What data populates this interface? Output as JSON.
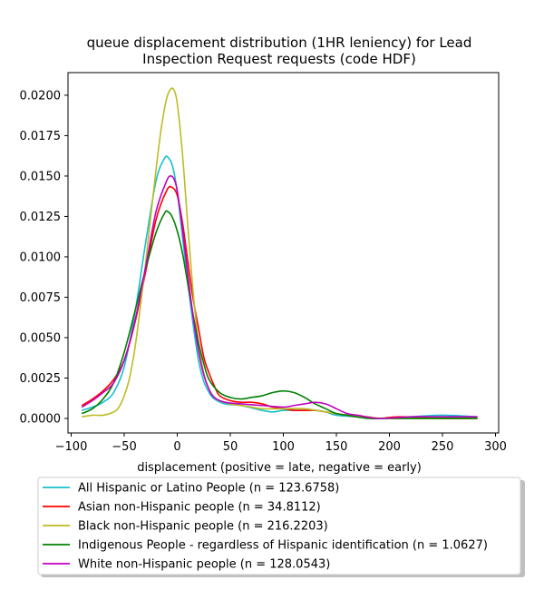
{
  "chart_data": {
    "type": "line",
    "title_lines": [
      "queue displacement distribution (1HR leniency) for Lead",
      "Inspection Request  requests (code HDF)"
    ],
    "xlabel": "displacement (positive = late, negative = early)",
    "ylabel": "",
    "xlim": [
      -103,
      303
    ],
    "ylim": [
      -0.0009,
      0.0214
    ],
    "xticks": [
      -100,
      -50,
      0,
      50,
      100,
      150,
      200,
      250,
      300
    ],
    "xtick_labels": [
      "−100",
      "−50",
      "0",
      "50",
      "100",
      "150",
      "200",
      "250",
      "300"
    ],
    "yticks": [
      0,
      0.0025,
      0.005,
      0.0075,
      0.01,
      0.0125,
      0.015,
      0.0175,
      0.02
    ],
    "ytick_labels": [
      "0.0000",
      "0.0025",
      "0.0050",
      "0.0075",
      "0.0100",
      "0.0125",
      "0.0150",
      "0.0175",
      "0.0200"
    ],
    "grid": false,
    "legend_position": "below",
    "series": [
      {
        "name": "All Hispanic or Latino People (n = 123.6758)",
        "color": "#17becf",
        "points": [
          [
            -90,
            0.0005
          ],
          [
            -80,
            0.0007
          ],
          [
            -70,
            0.001
          ],
          [
            -60,
            0.0016
          ],
          [
            -50,
            0.0032
          ],
          [
            -40,
            0.0065
          ],
          [
            -30,
            0.0108
          ],
          [
            -20,
            0.0147
          ],
          [
            -12,
            0.0161
          ],
          [
            -8,
            0.0161
          ],
          [
            -4,
            0.0155
          ],
          [
            0,
            0.014
          ],
          [
            5,
            0.0112
          ],
          [
            10,
            0.0084
          ],
          [
            15,
            0.0058
          ],
          [
            20,
            0.0036
          ],
          [
            25,
            0.0023
          ],
          [
            30,
            0.0016
          ],
          [
            35,
            0.0012
          ],
          [
            45,
            0.0009
          ],
          [
            60,
            0.0008
          ],
          [
            80,
            0.0005
          ],
          [
            90,
            0.0004
          ],
          [
            100,
            0.0005
          ],
          [
            110,
            0.0005
          ],
          [
            120,
            0.0005
          ],
          [
            130,
            0.0005
          ],
          [
            140,
            0.0004
          ],
          [
            150,
            0.0002
          ],
          [
            170,
            0.0001
          ],
          [
            190,
            0.0
          ],
          [
            220,
            0.0001
          ],
          [
            250,
            0.0002
          ],
          [
            283,
            0.0001
          ]
        ]
      },
      {
        "name": "Asian non-Hispanic people (n = 34.8112)",
        "color": "#ff0000",
        "points": [
          [
            -90,
            0.0008
          ],
          [
            -80,
            0.0012
          ],
          [
            -70,
            0.0017
          ],
          [
            -60,
            0.0024
          ],
          [
            -50,
            0.0036
          ],
          [
            -40,
            0.0059
          ],
          [
            -30,
            0.009
          ],
          [
            -20,
            0.0123
          ],
          [
            -10,
            0.0141
          ],
          [
            -5,
            0.0143
          ],
          [
            0,
            0.0138
          ],
          [
            5,
            0.0121
          ],
          [
            10,
            0.0097
          ],
          [
            15,
            0.0074
          ],
          [
            20,
            0.0056
          ],
          [
            25,
            0.0038
          ],
          [
            30,
            0.0028
          ],
          [
            35,
            0.002
          ],
          [
            40,
            0.0014
          ],
          [
            50,
            0.0011
          ],
          [
            60,
            0.001
          ],
          [
            70,
            0.001
          ],
          [
            80,
            0.0009
          ],
          [
            90,
            0.0007
          ],
          [
            100,
            0.0006
          ],
          [
            110,
            0.0005
          ],
          [
            120,
            0.0005
          ],
          [
            130,
            0.0005
          ],
          [
            140,
            0.0004
          ],
          [
            150,
            0.0003
          ],
          [
            170,
            0.0001
          ],
          [
            190,
            0.0
          ],
          [
            210,
            0.0001
          ],
          [
            250,
            0.0
          ],
          [
            283,
            0.0
          ]
        ]
      },
      {
        "name": "Black non-Hispanic people (n = 216.2203)",
        "color": "#bcbd22",
        "points": [
          [
            -90,
            0.0001
          ],
          [
            -80,
            0.0002
          ],
          [
            -70,
            0.0002
          ],
          [
            -60,
            0.0004
          ],
          [
            -55,
            0.0007
          ],
          [
            -50,
            0.0014
          ],
          [
            -45,
            0.0025
          ],
          [
            -40,
            0.0043
          ],
          [
            -35,
            0.0068
          ],
          [
            -30,
            0.0095
          ],
          [
            -25,
            0.0125
          ],
          [
            -20,
            0.0154
          ],
          [
            -15,
            0.018
          ],
          [
            -10,
            0.0198
          ],
          [
            -6,
            0.0204
          ],
          [
            -3,
            0.0203
          ],
          [
            0,
            0.0195
          ],
          [
            5,
            0.0163
          ],
          [
            10,
            0.0119
          ],
          [
            15,
            0.0078
          ],
          [
            20,
            0.0047
          ],
          [
            25,
            0.0028
          ],
          [
            30,
            0.0018
          ],
          [
            35,
            0.0013
          ],
          [
            40,
            0.0011
          ],
          [
            50,
            0.0009
          ],
          [
            60,
            0.0008
          ],
          [
            70,
            0.0007
          ],
          [
            80,
            0.0006
          ],
          [
            100,
            0.0006
          ],
          [
            120,
            0.0006
          ],
          [
            140,
            0.0004
          ],
          [
            160,
            0.0002
          ],
          [
            180,
            0.0001
          ],
          [
            200,
            0.0
          ],
          [
            283,
            0.0
          ]
        ]
      },
      {
        "name": "Indigenous People - regardless of Hispanic identification (n = 1.0627)",
        "color": "#008000",
        "points": [
          [
            -90,
            0.0003
          ],
          [
            -80,
            0.0006
          ],
          [
            -70,
            0.0012
          ],
          [
            -60,
            0.0022
          ],
          [
            -50,
            0.0041
          ],
          [
            -40,
            0.0066
          ],
          [
            -30,
            0.0092
          ],
          [
            -20,
            0.0115
          ],
          [
            -12,
            0.0127
          ],
          [
            -9,
            0.0128
          ],
          [
            -5,
            0.0125
          ],
          [
            0,
            0.0116
          ],
          [
            5,
            0.0102
          ],
          [
            10,
            0.0083
          ],
          [
            15,
            0.0064
          ],
          [
            20,
            0.0047
          ],
          [
            25,
            0.0034
          ],
          [
            30,
            0.0024
          ],
          [
            40,
            0.0016
          ],
          [
            50,
            0.0013
          ],
          [
            60,
            0.0012
          ],
          [
            70,
            0.0013
          ],
          [
            80,
            0.0014
          ],
          [
            90,
            0.0016
          ],
          [
            100,
            0.0017
          ],
          [
            110,
            0.0016
          ],
          [
            120,
            0.0013
          ],
          [
            130,
            0.0009
          ],
          [
            140,
            0.0006
          ],
          [
            150,
            0.0003
          ],
          [
            160,
            0.0002
          ],
          [
            180,
            0.0
          ],
          [
            200,
            0.0
          ],
          [
            283,
            0.0
          ]
        ]
      },
      {
        "name": "White non-Hispanic people (n = 128.0543)",
        "color": "#bf00bf",
        "points": [
          [
            -90,
            0.0007
          ],
          [
            -80,
            0.0011
          ],
          [
            -70,
            0.0016
          ],
          [
            -60,
            0.0022
          ],
          [
            -50,
            0.0036
          ],
          [
            -40,
            0.006
          ],
          [
            -30,
            0.0093
          ],
          [
            -20,
            0.0128
          ],
          [
            -10,
            0.0147
          ],
          [
            -6,
            0.015
          ],
          [
            -3,
            0.0148
          ],
          [
            0,
            0.0141
          ],
          [
            5,
            0.0117
          ],
          [
            10,
            0.0089
          ],
          [
            15,
            0.0063
          ],
          [
            20,
            0.0042
          ],
          [
            25,
            0.0027
          ],
          [
            30,
            0.0018
          ],
          [
            35,
            0.0013
          ],
          [
            45,
            0.001
          ],
          [
            60,
            0.0009
          ],
          [
            80,
            0.0008
          ],
          [
            100,
            0.0007
          ],
          [
            110,
            0.0008
          ],
          [
            120,
            0.0009
          ],
          [
            130,
            0.001
          ],
          [
            140,
            0.0009
          ],
          [
            150,
            0.0006
          ],
          [
            160,
            0.0003
          ],
          [
            170,
            0.0002
          ],
          [
            190,
            0.0
          ],
          [
            220,
            0.0001
          ],
          [
            250,
            0.0001
          ],
          [
            283,
            0.0001
          ]
        ]
      }
    ]
  }
}
